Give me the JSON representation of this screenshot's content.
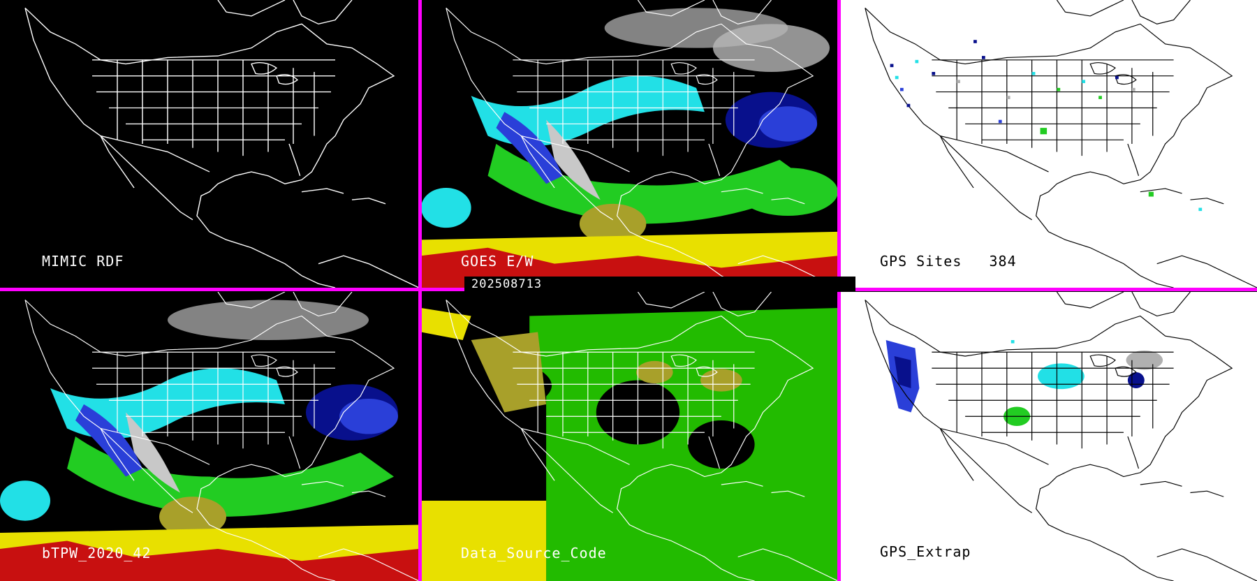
{
  "colors": {
    "divider": "#ff00ff",
    "coast_dark": "#ffffff",
    "coast_light": "#000000",
    "tpw_dark_blue": "#08108c",
    "tpw_blue": "#2a3fd8",
    "tpw_cyan": "#22e0e6",
    "tpw_green": "#22cc22",
    "tpw_olive": "#a8a02a",
    "tpw_yellow": "#e8e000",
    "tpw_red": "#c81010",
    "tpw_gray": "#b0b0b0"
  },
  "timestamp": "202508713",
  "panels": [
    {
      "id": "mimic-rdf",
      "label": "MIMIC RDF",
      "background": "#000000"
    },
    {
      "id": "goes-ew",
      "label": "GOES E/W",
      "background": "#000000"
    },
    {
      "id": "gps-sites",
      "label": "GPS Sites   384",
      "background": "#ffffff"
    },
    {
      "id": "btpw",
      "label": "bTPW_2020_42",
      "background": "#000000"
    },
    {
      "id": "data-source",
      "label": "Data_Source_Code",
      "background": "#000000"
    },
    {
      "id": "gps-extrap",
      "label": "GPS_Extrap",
      "background": "#ffffff"
    }
  ]
}
